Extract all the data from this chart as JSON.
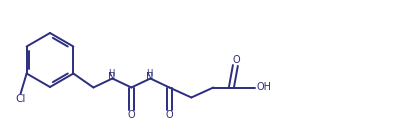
{
  "bg_color": "#ffffff",
  "line_color": "#2d2d7f",
  "line_width": 1.4,
  "text_color": "#2d2d7f",
  "font_size": 7.0,
  "figsize": [
    4.01,
    1.32
  ],
  "dpi": 100,
  "xlim": [
    0,
    4.01
  ],
  "ylim": [
    0,
    1.32
  ]
}
